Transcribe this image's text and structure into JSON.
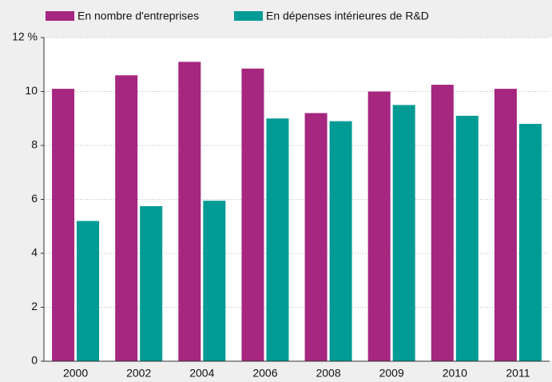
{
  "chart_data": {
    "type": "bar",
    "categories": [
      "2000",
      "2002",
      "2004",
      "2006",
      "2008",
      "2009",
      "2010",
      "2011"
    ],
    "series": [
      {
        "name": "En nombre d'entreprises",
        "color": "#a6277f",
        "values": [
          10.1,
          10.6,
          11.1,
          10.85,
          9.2,
          10.0,
          10.25,
          10.1
        ]
      },
      {
        "name": "En dépenses intérieures de R&D",
        "color": "#009b94",
        "values": [
          5.2,
          5.75,
          5.95,
          9.0,
          8.9,
          9.5,
          9.1,
          8.8
        ]
      }
    ],
    "ylim": [
      0,
      12
    ],
    "yticks": [
      0,
      2,
      4,
      6,
      8,
      10,
      {
        "value": 12,
        "label": "12 %"
      }
    ],
    "grid": true
  }
}
